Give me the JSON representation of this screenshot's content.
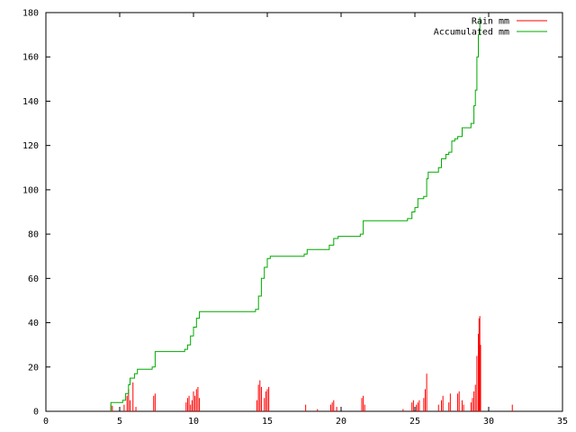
{
  "chart_data": {
    "type": "line",
    "title": "",
    "xlabel": "",
    "ylabel": "",
    "xlim": [
      0,
      35
    ],
    "ylim": [
      0,
      180
    ],
    "x_ticks": [
      0,
      5,
      10,
      15,
      20,
      25,
      30,
      35
    ],
    "y_ticks": [
      0,
      20,
      40,
      60,
      80,
      100,
      120,
      140,
      160,
      180
    ],
    "grid": false,
    "legend_position": "top-right",
    "series": [
      {
        "name": "Rain mm",
        "type": "impulse",
        "color": "#ff0000",
        "points": [
          [
            4.4,
            3
          ],
          [
            4.5,
            2.5
          ],
          [
            5.3,
            3
          ],
          [
            5.5,
            7
          ],
          [
            5.6,
            10
          ],
          [
            5.7,
            5
          ],
          [
            5.9,
            13
          ],
          [
            6.1,
            2
          ],
          [
            7.3,
            7
          ],
          [
            7.4,
            8
          ],
          [
            9.5,
            4
          ],
          [
            9.6,
            6
          ],
          [
            9.7,
            7
          ],
          [
            9.8,
            3
          ],
          [
            9.9,
            5
          ],
          [
            10.0,
            9
          ],
          [
            10.1,
            7
          ],
          [
            10.2,
            10
          ],
          [
            10.3,
            11
          ],
          [
            10.4,
            6
          ],
          [
            14.3,
            5
          ],
          [
            14.4,
            12
          ],
          [
            14.5,
            14
          ],
          [
            14.6,
            11
          ],
          [
            14.8,
            6
          ],
          [
            14.9,
            9
          ],
          [
            15.0,
            10
          ],
          [
            15.1,
            11
          ],
          [
            17.6,
            3
          ],
          [
            18.4,
            1
          ],
          [
            19.3,
            3
          ],
          [
            19.4,
            4
          ],
          [
            19.5,
            5
          ],
          [
            19.7,
            2
          ],
          [
            21.4,
            6
          ],
          [
            21.5,
            7
          ],
          [
            21.6,
            3
          ],
          [
            24.2,
            1
          ],
          [
            24.8,
            4
          ],
          [
            24.9,
            5
          ],
          [
            25.1,
            3
          ],
          [
            25.2,
            4
          ],
          [
            25.3,
            5
          ],
          [
            25.6,
            6
          ],
          [
            25.7,
            10
          ],
          [
            25.8,
            17
          ],
          [
            26.6,
            3
          ],
          [
            26.8,
            5
          ],
          [
            26.9,
            7
          ],
          [
            27.3,
            4
          ],
          [
            27.4,
            8
          ],
          [
            27.9,
            8
          ],
          [
            28.0,
            9
          ],
          [
            28.2,
            5
          ],
          [
            28.3,
            3
          ],
          [
            28.8,
            4
          ],
          [
            28.9,
            6
          ],
          [
            29.0,
            9
          ],
          [
            29.1,
            12
          ],
          [
            29.2,
            25
          ],
          [
            29.3,
            35
          ],
          [
            29.35,
            42
          ],
          [
            29.4,
            43
          ],
          [
            29.45,
            30
          ],
          [
            31.6,
            3
          ]
        ]
      },
      {
        "name": "Accumulated mm",
        "type": "line",
        "color": "#00aa00",
        "points": [
          [
            4.4,
            0
          ],
          [
            4.4,
            4
          ],
          [
            5.2,
            5
          ],
          [
            5.4,
            8
          ],
          [
            5.6,
            12
          ],
          [
            5.7,
            15
          ],
          [
            6.0,
            17
          ],
          [
            6.2,
            19
          ],
          [
            7.2,
            20
          ],
          [
            7.4,
            27
          ],
          [
            9.4,
            28
          ],
          [
            9.6,
            30
          ],
          [
            9.8,
            34
          ],
          [
            10.0,
            38
          ],
          [
            10.2,
            42
          ],
          [
            10.4,
            45
          ],
          [
            14.2,
            46
          ],
          [
            14.4,
            52
          ],
          [
            14.6,
            60
          ],
          [
            14.8,
            65
          ],
          [
            15.0,
            69
          ],
          [
            15.2,
            70
          ],
          [
            17.5,
            71
          ],
          [
            17.7,
            73
          ],
          [
            19.2,
            75
          ],
          [
            19.5,
            78
          ],
          [
            19.8,
            79
          ],
          [
            21.3,
            80
          ],
          [
            21.5,
            86
          ],
          [
            24.5,
            87
          ],
          [
            24.8,
            90
          ],
          [
            25.0,
            92
          ],
          [
            25.2,
            96
          ],
          [
            25.6,
            97
          ],
          [
            25.8,
            105
          ],
          [
            25.9,
            108
          ],
          [
            26.6,
            110
          ],
          [
            26.8,
            114
          ],
          [
            27.1,
            116
          ],
          [
            27.3,
            117
          ],
          [
            27.5,
            122
          ],
          [
            27.7,
            123
          ],
          [
            27.9,
            124
          ],
          [
            28.2,
            128
          ],
          [
            28.8,
            130
          ],
          [
            29.0,
            138
          ],
          [
            29.1,
            145
          ],
          [
            29.2,
            160
          ],
          [
            29.3,
            170
          ],
          [
            29.4,
            178
          ]
        ]
      }
    ]
  }
}
